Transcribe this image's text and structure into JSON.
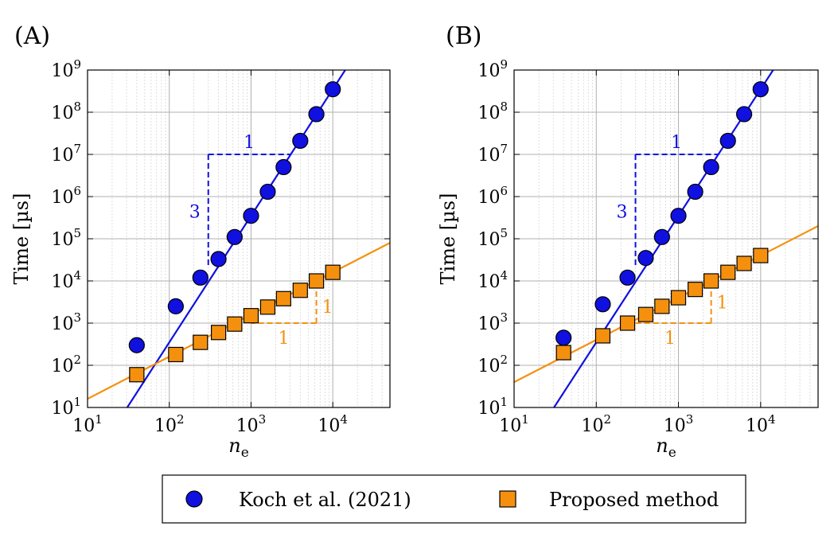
{
  "colors": {
    "koch": "#1010e0",
    "proposed": "#f5900e",
    "grid": "#b0b0b0",
    "gridMinor": "#d6d6d6"
  },
  "legend": {
    "koch_label": "Koch et al. (2021)",
    "proposed_label": "Proposed method"
  },
  "chart_data": [
    {
      "panel": "(A)",
      "type": "scatter",
      "xscale": "log",
      "yscale": "log",
      "xlim": [
        10,
        50000
      ],
      "ylim": [
        10,
        1000000000
      ],
      "xlabel": "n_e",
      "ylabel": "Time [µs]",
      "xticks": [
        10,
        100,
        1000,
        10000
      ],
      "yticks": [
        10,
        100,
        1000,
        10000,
        100000,
        1000000,
        10000000,
        100000000,
        1000000000
      ],
      "series": [
        {
          "name": "Koch et al. (2021)",
          "marker": "circle",
          "x": [
            40,
            120,
            240,
            400,
            630,
            1000,
            1600,
            2500,
            4000,
            6300,
            10000
          ],
          "y": [
            300,
            2500,
            12000,
            33000,
            110000,
            350000,
            1300000,
            5000000,
            21000000,
            90000000,
            350000000
          ]
        },
        {
          "name": "Proposed method",
          "marker": "square",
          "x": [
            40,
            120,
            240,
            400,
            630,
            1000,
            1600,
            2500,
            4000,
            6300,
            10000
          ],
          "y": [
            60,
            180,
            350,
            600,
            950,
            1500,
            2400,
            3800,
            6000,
            10000,
            16000
          ]
        }
      ],
      "fits": [
        {
          "name": "Koch et al. (2021) fit",
          "slope": 3,
          "through": [
            1000,
            350000
          ]
        },
        {
          "name": "Proposed method fit",
          "slope": 1,
          "through": [
            1000,
            1600
          ]
        }
      ],
      "triangles": [
        {
          "series": "Koch et al. (2021)",
          "corner": [
            300,
            10000000
          ],
          "run_to": 3000,
          "rise_to": 20000,
          "run_label": "1",
          "rise_label": "3",
          "orientation": "upper-left"
        },
        {
          "series": "Proposed method",
          "corner": [
            6300,
            1000
          ],
          "run_to": 1000,
          "rise_to": 6300,
          "run_label": "1",
          "rise_label": "1",
          "orientation": "lower-right"
        }
      ]
    },
    {
      "panel": "(B)",
      "type": "scatter",
      "xscale": "log",
      "yscale": "log",
      "xlim": [
        10,
        50000
      ],
      "ylim": [
        10,
        1000000000
      ],
      "xlabel": "n_e",
      "ylabel": "Time [µs]",
      "xticks": [
        10,
        100,
        1000,
        10000
      ],
      "yticks": [
        10,
        100,
        1000,
        10000,
        100000,
        1000000,
        10000000,
        100000000,
        1000000000
      ],
      "series": [
        {
          "name": "Koch et al. (2021)",
          "marker": "circle",
          "x": [
            40,
            120,
            240,
            400,
            630,
            1000,
            1600,
            2500,
            4000,
            6300,
            10000
          ],
          "y": [
            450,
            2800,
            12000,
            35000,
            110000,
            350000,
            1300000,
            5000000,
            21000000,
            90000000,
            350000000
          ]
        },
        {
          "name": "Proposed method",
          "marker": "square",
          "x": [
            40,
            120,
            240,
            400,
            630,
            1000,
            1600,
            2500,
            4000,
            6300,
            10000
          ],
          "y": [
            200,
            500,
            1000,
            1600,
            2500,
            4000,
            6300,
            10000,
            16000,
            26000,
            40000
          ]
        }
      ],
      "fits": [
        {
          "name": "Koch et al. (2021) fit",
          "slope": 3,
          "through": [
            1000,
            350000
          ]
        },
        {
          "name": "Proposed method fit",
          "slope": 1,
          "through": [
            1000,
            4000
          ]
        }
      ],
      "triangles": [
        {
          "series": "Koch et al. (2021)",
          "corner": [
            300,
            10000000
          ],
          "run_to": 3000,
          "rise_to": 20000,
          "run_label": "1",
          "rise_label": "3",
          "orientation": "upper-left"
        },
        {
          "series": "Proposed method",
          "corner": [
            2500,
            1000
          ],
          "run_to": 250,
          "rise_to": 10000,
          "run_label": "1",
          "rise_label": "1",
          "orientation": "lower-right"
        }
      ]
    }
  ]
}
